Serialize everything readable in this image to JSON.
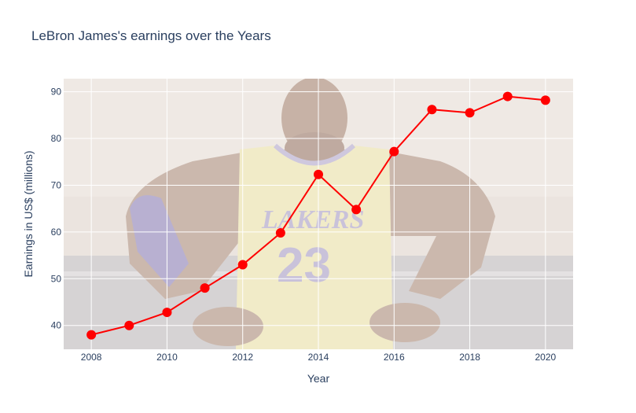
{
  "chart_data": {
    "type": "line",
    "title": "LeBron James's earnings over the Years",
    "xlabel": "Year",
    "ylabel": "Earnings in US$ (millions)",
    "x": [
      2008,
      2009,
      2010,
      2011,
      2012,
      2013,
      2014,
      2015,
      2016,
      2017,
      2018,
      2019,
      2020
    ],
    "series": [
      {
        "name": "Earnings",
        "color": "#ff0000",
        "values": [
          38.0,
          40.0,
          42.8,
          48.0,
          53.0,
          59.8,
          72.3,
          64.8,
          77.2,
          86.2,
          85.5,
          89.0,
          88.2
        ]
      }
    ],
    "xticks": [
      2008,
      2010,
      2012,
      2014,
      2016,
      2018,
      2020
    ],
    "yticks": [
      40,
      50,
      60,
      70,
      80,
      90
    ],
    "xlim": [
      2007.27,
      2020.73
    ],
    "ylim": [
      34.9,
      92.8
    ],
    "grid": true,
    "background_image": "faded basketball player photo"
  }
}
